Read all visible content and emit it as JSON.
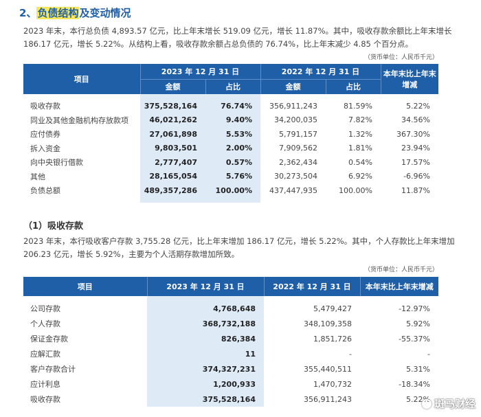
{
  "section": {
    "number": "2、",
    "title_highlight": "负债结构",
    "title_rest": "及变动情况",
    "paragraph": "2023 年末，本行总负债 4,893.57 亿元，比上年末增长 519.09 亿元，增长 11.87%。其中，吸收存款余额比上年末增长 186.17 亿元，增长 5.22%。从结构上看，吸收存款余额占总负债的 76.74%，比上年末减少 4.85 个百分点。",
    "unit": "（货币单位：人民币千元）"
  },
  "table1": {
    "header": {
      "item": "项目",
      "y2023": "2023 年 12 月 31 日",
      "y2022": "2022 年 12 月 31 日",
      "change": "本年末比上年末增减",
      "amount": "金额",
      "ratio": "占比"
    },
    "rows": [
      {
        "name": "吸收存款",
        "a23": "375,528,164",
        "r23": "76.74%",
        "a22": "356,911,243",
        "r22": "81.59%",
        "chg": "5.22%"
      },
      {
        "name": "同业及其他金融机构存放款项",
        "a23": "46,021,262",
        "r23": "9.40%",
        "a22": "34,200,035",
        "r22": "7.82%",
        "chg": "34.56%"
      },
      {
        "name": "应付债券",
        "a23": "27,061,898",
        "r23": "5.53%",
        "a22": "5,791,157",
        "r22": "1.32%",
        "chg": "367.30%"
      },
      {
        "name": "拆入资金",
        "a23": "9,803,501",
        "r23": "2.00%",
        "a22": "7,909,562",
        "r22": "1.81%",
        "chg": "23.94%"
      },
      {
        "name": "向中央银行借款",
        "a23": "2,777,407",
        "r23": "0.57%",
        "a22": "2,362,434",
        "r22": "0.54%",
        "chg": "17.57%"
      },
      {
        "name": "其他",
        "a23": "28,165,054",
        "r23": "5.76%",
        "a22": "30,273,504",
        "r22": "6.92%",
        "chg": "-6.96%"
      },
      {
        "name": "负债总额",
        "a23": "489,357,286",
        "r23": "100.00%",
        "a22": "437,447,935",
        "r22": "100.00%",
        "chg": "11.87%"
      }
    ]
  },
  "subsection": {
    "title": "（1）吸收存款",
    "paragraph": "2023 年末，本行吸收客户存款 3,755.28 亿元，比上年末增加 186.17 亿元，增长 5.22%。其中，个人存款比上年末增加 206.23 亿元，增长 5.92%，主要为个人活期存款增加所致。",
    "unit": "（货币单位：人民币千元）"
  },
  "table2": {
    "header": {
      "item": "项目",
      "y2023": "2023 年 12 月 31 日",
      "y2022": "2022 年 12 月 31 日",
      "change": "本年末比上年末增减"
    },
    "rows": [
      {
        "name": "公司存款",
        "a23": "4,768,648",
        "a22": "5,479,427",
        "chg": "-12.97%"
      },
      {
        "name": "个人存款",
        "a23": "368,732,188",
        "a22": "348,109,358",
        "chg": "5.92%"
      },
      {
        "name": "保证金存款",
        "a23": "826,384",
        "a22": "1,851,726",
        "chg": "-55.37%"
      },
      {
        "name": "应解汇款",
        "a23": "11",
        "a22": "-",
        "chg": "-"
      },
      {
        "name": "客户存款合计",
        "a23": "374,327,231",
        "a22": "355,440,511",
        "chg": "5.31%"
      },
      {
        "name": "应计利息",
        "a23": "1,200,933",
        "a22": "1,470,732",
        "chg": "-18.34%"
      },
      {
        "name": "吸收存款",
        "a23": "375,528,164",
        "a22": "356,911,243",
        "chg": "5.22%"
      }
    ]
  },
  "watermark": "斑马财经"
}
